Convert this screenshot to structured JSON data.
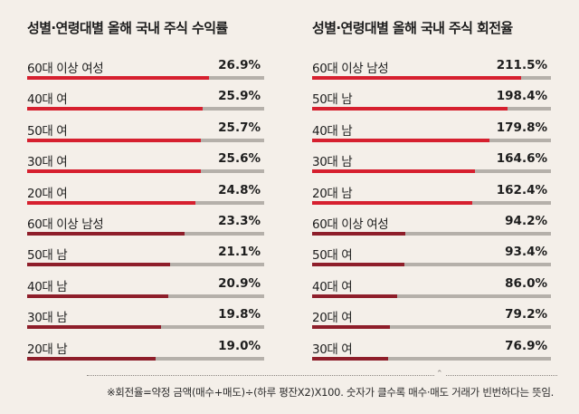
{
  "colors": {
    "red": "#d6202f",
    "dark_red": "#8e1e2a",
    "track": "#b5b0aa",
    "background": "#f4efe9"
  },
  "chart_data": [
    {
      "type": "bar",
      "orientation": "horizontal",
      "title": "성별·연령대별 올해 국내 주식 수익률",
      "categories": [
        "60대 이상 여성",
        "40대 여",
        "50대 여",
        "30대 여",
        "20대 여",
        "60대 이상 남성",
        "50대 남",
        "40대 남",
        "30대 남",
        "20대 남"
      ],
      "values": [
        26.9,
        25.9,
        25.7,
        25.6,
        24.8,
        23.3,
        21.1,
        20.9,
        19.8,
        19.0
      ],
      "value_labels": [
        "26.9%",
        "25.9%",
        "25.7%",
        "25.6%",
        "24.8%",
        "23.3%",
        "21.1%",
        "20.9%",
        "19.8%",
        "19.0%"
      ],
      "bar_colors": [
        "#d6202f",
        "#d6202f",
        "#d6202f",
        "#d6202f",
        "#d6202f",
        "#8e1e2a",
        "#8e1e2a",
        "#8e1e2a",
        "#8e1e2a",
        "#8e1e2a"
      ],
      "xlim": [
        0,
        35
      ],
      "unit": "%"
    },
    {
      "type": "bar",
      "orientation": "horizontal",
      "title": "성별·연령대별 올해 국내 주식 회전율",
      "categories": [
        "60대 이상 남성",
        "50대 남",
        "40대 남",
        "30대 남",
        "20대 남",
        "60대 이상 여성",
        "50대 여",
        "40대 여",
        "20대 여",
        "30대 여"
      ],
      "values": [
        211.5,
        198.4,
        179.8,
        164.6,
        162.4,
        94.2,
        93.4,
        86.0,
        79.2,
        76.9
      ],
      "value_labels": [
        "211.5%",
        "198.4%",
        "179.8%",
        "164.6%",
        "162.4%",
        "94.2%",
        "93.4%",
        "86.0%",
        "79.2%",
        "76.9%"
      ],
      "bar_colors": [
        "#d6202f",
        "#d6202f",
        "#d6202f",
        "#d6202f",
        "#d6202f",
        "#8e1e2a",
        "#8e1e2a",
        "#8e1e2a",
        "#8e1e2a",
        "#8e1e2a"
      ],
      "xlim": [
        0,
        242
      ],
      "unit": "%"
    }
  ],
  "footnote": "※회전율=약정 금액(매수+매도)÷(하루 평잔X2)X100. 숫자가 클수록 매수·매도 거래가 빈번하다는 뜻임."
}
